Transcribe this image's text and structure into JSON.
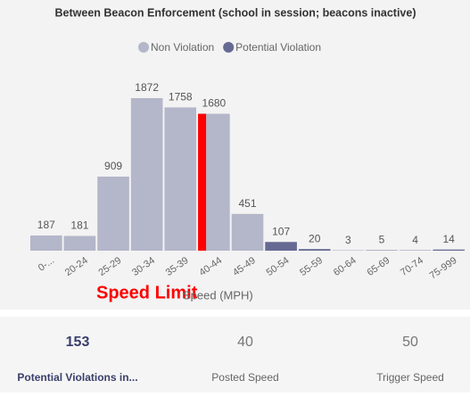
{
  "chart_data": {
    "type": "bar",
    "title": "Between Beacon Enforcement (school in session; beacons inactive)",
    "categories": [
      "0-...",
      "20-24",
      "25-29",
      "30-34",
      "35-39",
      "40-44",
      "45-49",
      "50-54",
      "55-59",
      "60-64",
      "65-69",
      "70-74",
      "75-999"
    ],
    "series": [
      {
        "name": "Non Violation",
        "color": "#b4b6c9",
        "values": [
          187,
          181,
          909,
          1872,
          1758,
          1680,
          451,
          null,
          null,
          null,
          null,
          null,
          null
        ]
      },
      {
        "name": "Potential Violation",
        "color": "#666a93",
        "values": [
          null,
          null,
          null,
          null,
          null,
          null,
          null,
          107,
          20,
          3,
          5,
          4,
          14
        ]
      }
    ],
    "x_label": "Speed (MPH)",
    "marker": {
      "text": "Speed Limit",
      "at": "40-44",
      "color": "#ff0000"
    }
  },
  "cards": [
    {
      "value": 153,
      "label": "Potential Violations in..."
    },
    {
      "value": 40,
      "label": "Posted Speed"
    },
    {
      "value": 50,
      "label": "Trigger Speed"
    }
  ]
}
